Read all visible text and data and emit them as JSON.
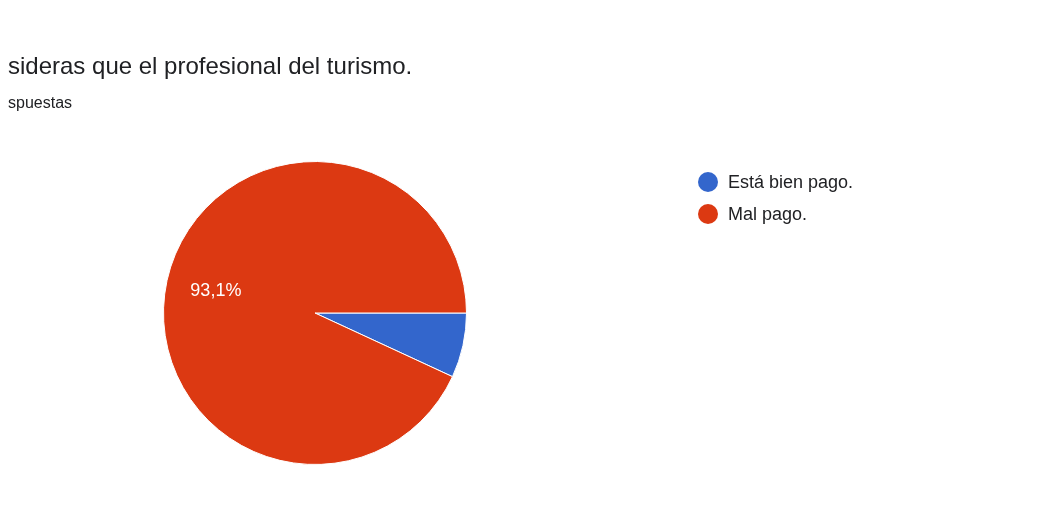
{
  "chart_data": {
    "type": "pie",
    "title": "sideras que el profesional del turismo.",
    "subtitle": "spuestas",
    "categories": [
      "Está bien pago.",
      "Mal pago."
    ],
    "values": [
      6.9,
      93.1
    ],
    "colors": [
      "#3366cc",
      "#dc3912"
    ],
    "value_labels": [
      null,
      "93,1%"
    ],
    "legend": "top right"
  }
}
